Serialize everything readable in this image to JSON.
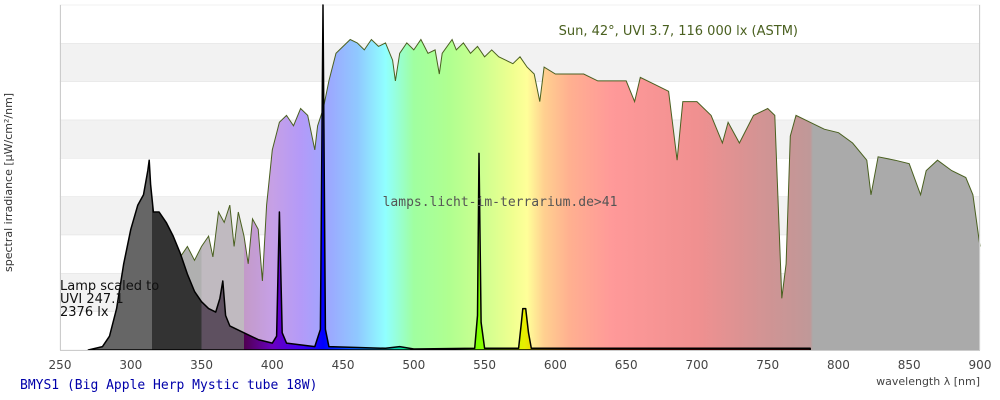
{
  "chart_data": {
    "type": "area",
    "title": "BMYS1 (Big Apple Herp Mystic tube 18W)",
    "xlabel": "wavelength λ [nm]",
    "ylabel": "spectral irradiance [µW/cm²/nm]",
    "xlim": [
      250,
      900
    ],
    "ylim": [
      0,
      1
    ],
    "x_ticks": [
      250,
      300,
      350,
      400,
      450,
      500,
      550,
      600,
      650,
      700,
      750,
      800,
      850,
      900
    ],
    "grid": "horizontal alternating bands",
    "watermark": "lamps.licht-im-terrarium.de>41",
    "series": [
      {
        "name": "Sun, 42°, UVI 3.7, 116 000 lx (ASTM)",
        "color": "#4a6020",
        "points": [
          [
            295,
            0
          ],
          [
            300,
            0.02
          ],
          [
            305,
            0.06
          ],
          [
            310,
            0.12
          ],
          [
            315,
            0.18
          ],
          [
            320,
            0.2
          ],
          [
            325,
            0.26
          ],
          [
            330,
            0.3
          ],
          [
            335,
            0.27
          ],
          [
            340,
            0.3
          ],
          [
            345,
            0.26
          ],
          [
            350,
            0.3
          ],
          [
            355,
            0.33
          ],
          [
            358,
            0.27
          ],
          [
            362,
            0.4
          ],
          [
            366,
            0.37
          ],
          [
            370,
            0.42
          ],
          [
            373,
            0.3
          ],
          [
            376,
            0.4
          ],
          [
            380,
            0.33
          ],
          [
            383,
            0.25
          ],
          [
            386,
            0.38
          ],
          [
            390,
            0.35
          ],
          [
            393,
            0.2
          ],
          [
            396,
            0.42
          ],
          [
            400,
            0.58
          ],
          [
            405,
            0.66
          ],
          [
            410,
            0.68
          ],
          [
            415,
            0.65
          ],
          [
            420,
            0.7
          ],
          [
            425,
            0.68
          ],
          [
            430,
            0.58
          ],
          [
            432,
            0.65
          ],
          [
            436,
            0.7
          ],
          [
            440,
            0.78
          ],
          [
            445,
            0.86
          ],
          [
            450,
            0.88
          ],
          [
            455,
            0.9
          ],
          [
            460,
            0.89
          ],
          [
            465,
            0.87
          ],
          [
            470,
            0.9
          ],
          [
            475,
            0.88
          ],
          [
            480,
            0.89
          ],
          [
            485,
            0.84
          ],
          [
            487,
            0.78
          ],
          [
            490,
            0.86
          ],
          [
            495,
            0.89
          ],
          [
            500,
            0.87
          ],
          [
            505,
            0.9
          ],
          [
            510,
            0.86
          ],
          [
            515,
            0.87
          ],
          [
            518,
            0.8
          ],
          [
            520,
            0.86
          ],
          [
            527,
            0.9
          ],
          [
            530,
            0.87
          ],
          [
            535,
            0.89
          ],
          [
            540,
            0.86
          ],
          [
            545,
            0.88
          ],
          [
            550,
            0.85
          ],
          [
            555,
            0.87
          ],
          [
            560,
            0.85
          ],
          [
            565,
            0.84
          ],
          [
            570,
            0.83
          ],
          [
            575,
            0.85
          ],
          [
            580,
            0.82
          ],
          [
            585,
            0.8
          ],
          [
            589,
            0.72
          ],
          [
            592,
            0.82
          ],
          [
            600,
            0.8
          ],
          [
            610,
            0.8
          ],
          [
            620,
            0.8
          ],
          [
            630,
            0.78
          ],
          [
            640,
            0.78
          ],
          [
            650,
            0.78
          ],
          [
            656,
            0.72
          ],
          [
            660,
            0.79
          ],
          [
            670,
            0.77
          ],
          [
            680,
            0.75
          ],
          [
            686,
            0.55
          ],
          [
            690,
            0.72
          ],
          [
            700,
            0.72
          ],
          [
            710,
            0.68
          ],
          [
            718,
            0.6
          ],
          [
            722,
            0.66
          ],
          [
            730,
            0.6
          ],
          [
            740,
            0.68
          ],
          [
            750,
            0.7
          ],
          [
            755,
            0.68
          ],
          [
            760,
            0.15
          ],
          [
            763,
            0.25
          ],
          [
            766,
            0.62
          ],
          [
            770,
            0.68
          ],
          [
            780,
            0.66
          ],
          [
            790,
            0.64
          ],
          [
            800,
            0.63
          ],
          [
            810,
            0.6
          ],
          [
            820,
            0.55
          ],
          [
            823,
            0.45
          ],
          [
            828,
            0.56
          ],
          [
            840,
            0.55
          ],
          [
            850,
            0.54
          ],
          [
            858,
            0.45
          ],
          [
            862,
            0.52
          ],
          [
            870,
            0.55
          ],
          [
            880,
            0.52
          ],
          [
            890,
            0.5
          ],
          [
            895,
            0.45
          ],
          [
            900,
            0.3
          ]
        ]
      },
      {
        "name": "Lamp scaled to UVI 247.1 2376 lx",
        "color": "#000000",
        "points": [
          [
            270,
            0
          ],
          [
            280,
            0.01
          ],
          [
            285,
            0.04
          ],
          [
            290,
            0.12
          ],
          [
            295,
            0.25
          ],
          [
            300,
            0.35
          ],
          [
            305,
            0.42
          ],
          [
            309,
            0.45
          ],
          [
            312,
            0.52
          ],
          [
            313,
            0.55
          ],
          [
            314,
            0.48
          ],
          [
            316,
            0.4
          ],
          [
            320,
            0.4
          ],
          [
            325,
            0.37
          ],
          [
            330,
            0.33
          ],
          [
            335,
            0.28
          ],
          [
            340,
            0.22
          ],
          [
            345,
            0.17
          ],
          [
            350,
            0.14
          ],
          [
            355,
            0.12
          ],
          [
            360,
            0.11
          ],
          [
            363,
            0.15
          ],
          [
            365,
            0.2
          ],
          [
            367,
            0.1
          ],
          [
            370,
            0.07
          ],
          [
            380,
            0.05
          ],
          [
            390,
            0.03
          ],
          [
            400,
            0.02
          ],
          [
            403,
            0.04
          ],
          [
            405,
            0.4
          ],
          [
            407,
            0.05
          ],
          [
            410,
            0.02
          ],
          [
            430,
            0.01
          ],
          [
            434,
            0.06
          ],
          [
            435.8,
            1.0
          ],
          [
            437.5,
            0.06
          ],
          [
            440,
            0.01
          ],
          [
            480,
            0.005
          ],
          [
            490,
            0.01
          ],
          [
            500,
            0.003
          ],
          [
            543,
            0.005
          ],
          [
            545,
            0.1
          ],
          [
            546,
            0.57
          ],
          [
            547.5,
            0.08
          ],
          [
            550,
            0.005
          ],
          [
            574,
            0.005
          ],
          [
            576,
            0.08
          ],
          [
            577,
            0.12
          ],
          [
            579,
            0.12
          ],
          [
            581,
            0.05
          ],
          [
            583,
            0.005
          ],
          [
            700,
            0.005
          ],
          [
            780,
            0.005
          ]
        ]
      }
    ],
    "annotations": {
      "sun_label": "Sun, 42°, UVI 3.7, 116 000 lx (ASTM)",
      "lamp_label": [
        "Lamp scaled to",
        "UVI 247.1",
        "2376 lx"
      ]
    }
  }
}
